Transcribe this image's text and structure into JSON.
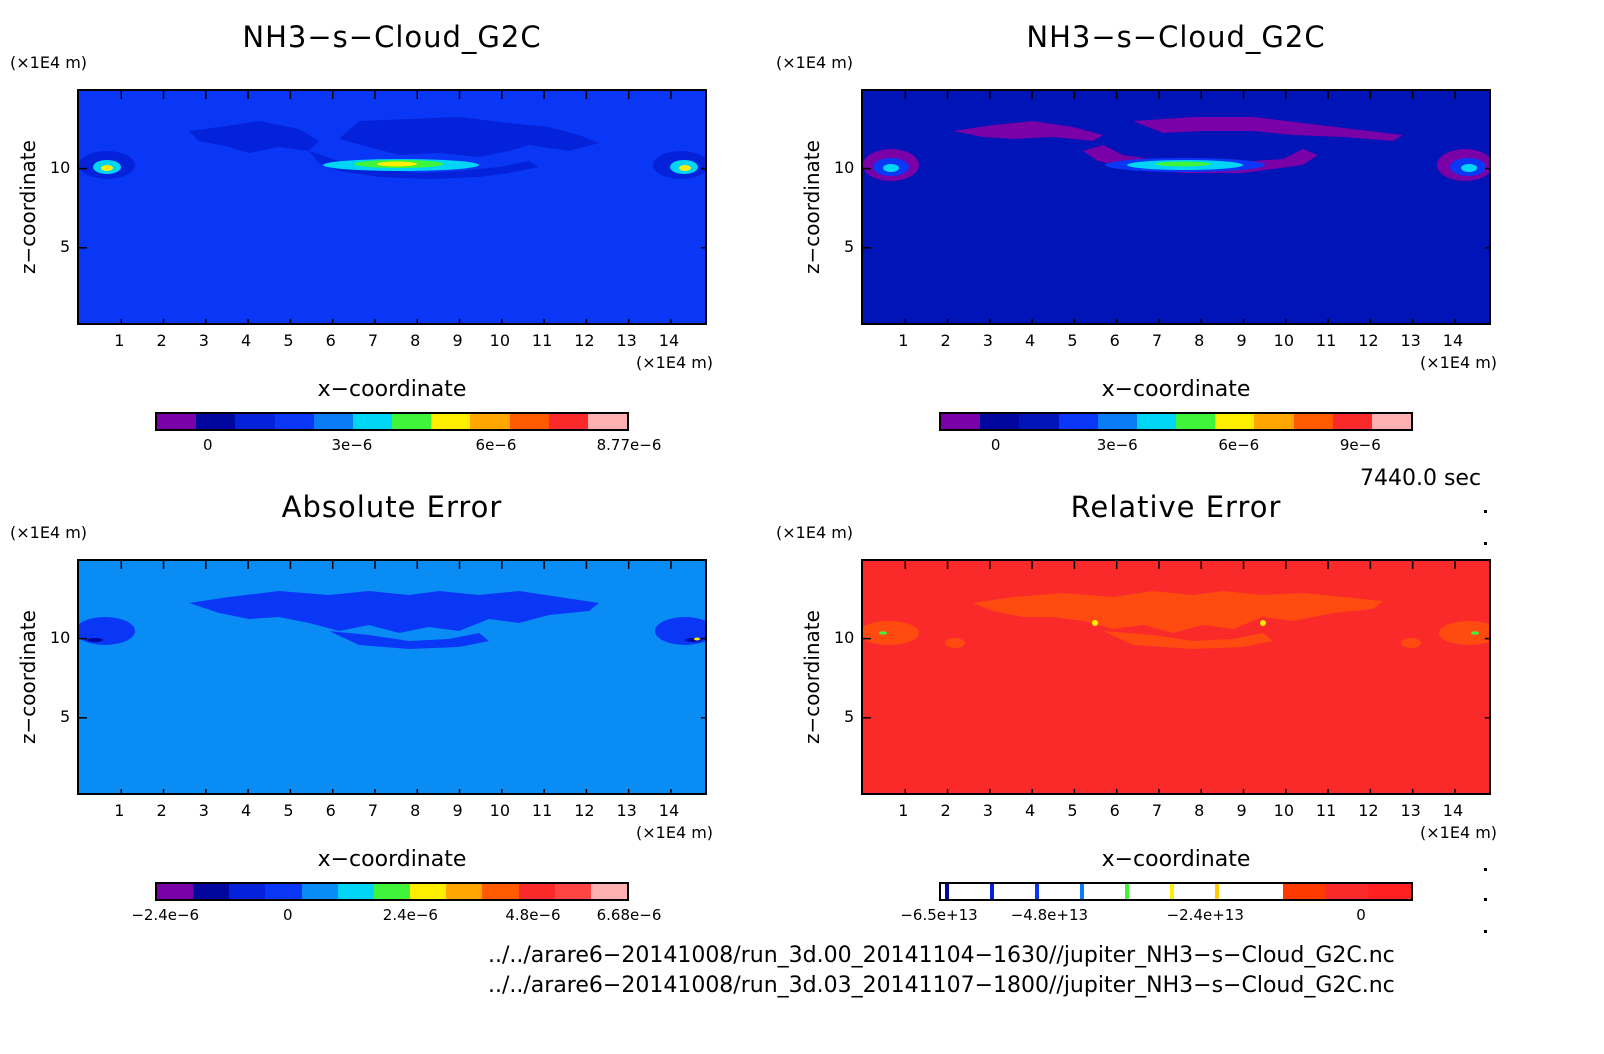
{
  "chart_data": [
    {
      "type": "heatmap",
      "title": "NH3−s−Cloud_G2C",
      "xlabel": "x−coordinate",
      "ylabel": "z−coordinate",
      "x_unit": "(×1E4 m)",
      "y_unit": "(×1E4 m)",
      "x_ticks": [
        "1",
        "2",
        "3",
        "4",
        "5",
        "6",
        "7",
        "8",
        "9",
        "10",
        "11",
        "12",
        "13",
        "14"
      ],
      "y_ticks": [
        "5",
        "10"
      ],
      "xlim": [
        0,
        14.9
      ],
      "ylim": [
        0,
        14.9
      ],
      "background_color": "#0a37f5",
      "colorbar": {
        "colors": [
          "#7a00a8",
          "#00069e",
          "#0422d9",
          "#0a37f5",
          "#0a7cf5",
          "#00d5f5",
          "#3ff43a",
          "#ffee00",
          "#ffa600",
          "#ff5a00",
          "#fa2a2a",
          "#ffb0b0"
        ],
        "tick_labels": [
          "0",
          "3e−6",
          "6e−6",
          "8.77e−6"
        ],
        "tick_values": [
          0,
          3e-06,
          6e-06,
          8.77e-06
        ],
        "range": [
          -1.1e-06,
          8.77e-06
        ]
      }
    },
    {
      "type": "heatmap",
      "title": "NH3−s−Cloud_G2C",
      "xlabel": "x−coordinate",
      "ylabel": "z−coordinate",
      "x_unit": "(×1E4 m)",
      "y_unit": "(×1E4 m)",
      "x_ticks": [
        "1",
        "2",
        "3",
        "4",
        "5",
        "6",
        "7",
        "8",
        "9",
        "10",
        "11",
        "12",
        "13",
        "14"
      ],
      "y_ticks": [
        "5",
        "10"
      ],
      "xlim": [
        0,
        14.9
      ],
      "ylim": [
        0,
        14.9
      ],
      "background_color": "#0014b8",
      "colorbar": {
        "colors": [
          "#7a00a8",
          "#00069e",
          "#0014b8",
          "#0a37f5",
          "#0a7cf5",
          "#00d5f5",
          "#3ff43a",
          "#ffee00",
          "#ffa600",
          "#ff5a00",
          "#fa2a2a",
          "#ffb0b0"
        ],
        "tick_labels": [
          "0",
          "3e−6",
          "6e−6",
          "9e−6"
        ],
        "tick_values": [
          0,
          3e-06,
          6e-06,
          9e-06
        ],
        "range": [
          -1.4e-06,
          1.03e-05
        ]
      }
    },
    {
      "type": "heatmap",
      "title": "Absolute Error",
      "xlabel": "x−coordinate",
      "ylabel": "z−coordinate",
      "x_unit": "(×1E4 m)",
      "y_unit": "(×1E4 m)",
      "x_ticks": [
        "1",
        "2",
        "3",
        "4",
        "5",
        "6",
        "7",
        "8",
        "9",
        "10",
        "11",
        "12",
        "13",
        "14"
      ],
      "y_ticks": [
        "5",
        "10"
      ],
      "xlim": [
        0,
        14.9
      ],
      "ylim": [
        0,
        14.9
      ],
      "background_color": "#0a8cf5",
      "colorbar": {
        "colors": [
          "#7a00a8",
          "#00069e",
          "#0422d9",
          "#0a37f5",
          "#0a8cf5",
          "#00d5f5",
          "#3ff43a",
          "#ffee00",
          "#ffa600",
          "#ff5a00",
          "#fa2a2a",
          "#ff4444",
          "#ffb0b0"
        ],
        "tick_labels": [
          "−2.4e−6",
          "0",
          "2.4e−6",
          "4.8e−6",
          "6.68e−6"
        ],
        "tick_values": [
          -2.4e-06,
          0,
          2.4e-06,
          4.8e-06,
          6.68e-06
        ],
        "range": [
          -2.6e-06,
          6.68e-06
        ]
      }
    },
    {
      "type": "heatmap",
      "title": "Relative Error",
      "xlabel": "x−coordinate",
      "ylabel": "z−coordinate",
      "x_unit": "(×1E4 m)",
      "y_unit": "(×1E4 m)",
      "x_ticks": [
        "1",
        "2",
        "3",
        "4",
        "5",
        "6",
        "7",
        "8",
        "9",
        "10",
        "11",
        "12",
        "13",
        "14"
      ],
      "y_ticks": [
        "5",
        "10"
      ],
      "xlim": [
        0,
        14.9
      ],
      "ylim": [
        0,
        14.9
      ],
      "background_color": "#fa2a2a",
      "colorbar": {
        "colors": [
          "#ffffff",
          "#ffffff",
          "#ffffff",
          "#ffffff",
          "#ffffff",
          "#ffffff",
          "#ffffff",
          "#ffffff",
          "#ff3a00",
          "#fa2a2a",
          "#ff2020"
        ],
        "marker_colors": [
          "#00069e",
          "#0422d9",
          "#0a37f5",
          "#0a7cf5",
          "#3ff43a",
          "#ffee00",
          "#ffcc00"
        ],
        "tick_labels": [
          "−6.5e+13",
          "−4.8e+13",
          "−2.4e+13",
          "0"
        ],
        "tick_values": [
          -65000000000000.0,
          -48000000000000.0,
          -24000000000000.0,
          0
        ],
        "range": [
          -65000000000000.0,
          8000000000000.0
        ]
      }
    }
  ],
  "time_label": "7440.0 sec",
  "footer": {
    "file1": "../../arare6−20141008/run_3d.00_20141104−1630//jupiter_NH3−s−Cloud_G2C.nc",
    "file2": "../../arare6−20141008/run_3d.03_20141107−1800//jupiter_NH3−s−Cloud_G2C.nc"
  }
}
